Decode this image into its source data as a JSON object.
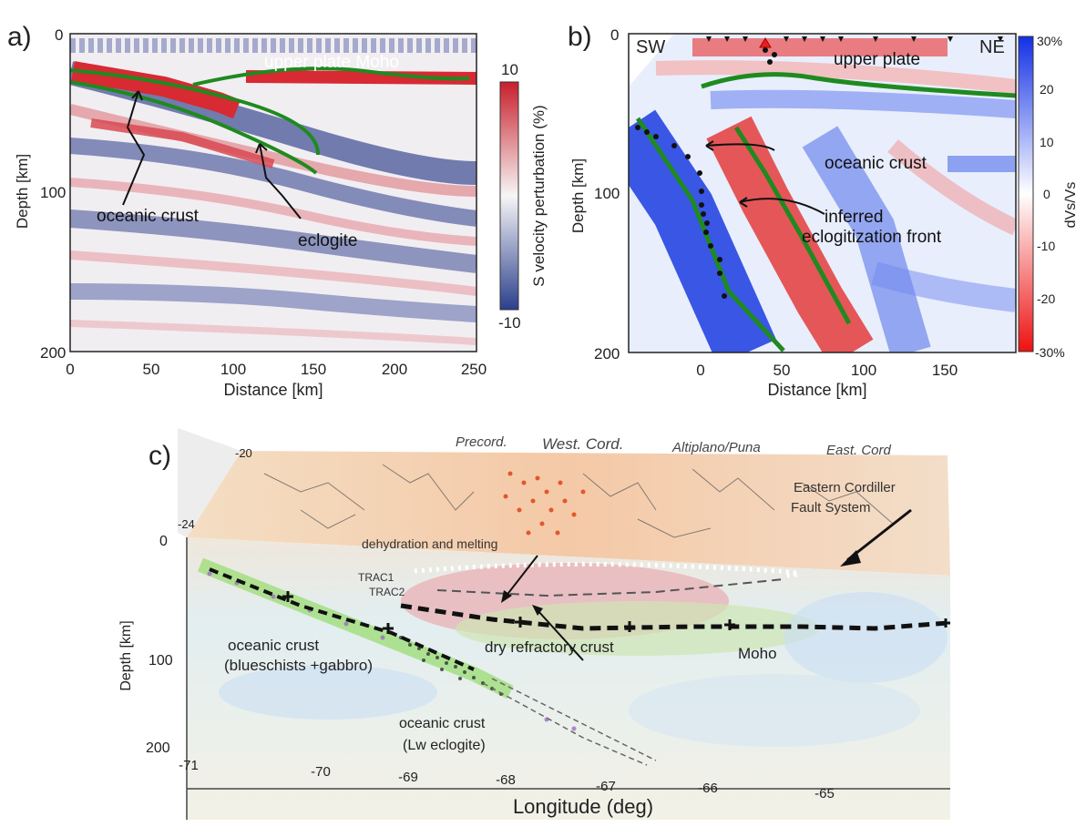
{
  "panel_a": {
    "panel_label": "a)",
    "ylabel": "Depth [km]",
    "xlabel": "Distance [km]",
    "xticks": [
      "0",
      "50",
      "100",
      "150",
      "200",
      "250"
    ],
    "yticks": [
      "0",
      "100",
      "200"
    ],
    "colorbar_label": "S velocity perturbation (%)",
    "colorbar_max": "10",
    "colorbar_min": "-10",
    "annotations": {
      "upper_plate_moho": "upper plate Moho",
      "oceanic_crust": "oceanic crust",
      "eclogite": "eclogite"
    },
    "colors": {
      "positive": "#d7262e",
      "negative": "#2b3f8c",
      "line": "#1f8a1f"
    }
  },
  "panel_b": {
    "panel_label": "b)",
    "ylabel": "Depth [km]",
    "xlabel": "Distance [km]",
    "xticks": [
      "0",
      "50",
      "100",
      "150"
    ],
    "yticks": [
      "0",
      "100",
      "200"
    ],
    "corner_left": "SW",
    "corner_right": "NE",
    "colorbar_label": "dVs/Vs",
    "colorbar_ticks": [
      "30%",
      "20",
      "10",
      "0",
      "-10",
      "-20",
      "-30%"
    ],
    "annotations": {
      "upper_plate": "upper plate",
      "oceanic_crust": "oceanic crust",
      "inferred": "inferred",
      "front": "eclogitization front"
    },
    "colors": {
      "positive": "#1a3be0",
      "negative": "#e81e1e",
      "line": "#1f8a1f"
    }
  },
  "panel_c": {
    "panel_label": "c)",
    "ylabel": "Depth [km]",
    "xlabel": "Longitude (deg)",
    "xticks": [
      "-71",
      "-70",
      "-69",
      "-68",
      "-67",
      "-66",
      "-65"
    ],
    "yticks": [
      "0",
      "100",
      "200"
    ],
    "lat_ticks": [
      "-20",
      "-24"
    ],
    "regions": [
      "Precord.",
      "West. Cord.",
      "Altiplano/Puna",
      "East. Cord"
    ],
    "fault_label_1": "Eastern Cordiller",
    "fault_label_2": "Fault System",
    "annotations": {
      "dehydration": "dehydration and melting",
      "trac1": "TRAC1",
      "trac2": "TRAC2",
      "dry_crust": "dry refractory crust",
      "moho": "Moho",
      "oc1_line1": "oceanic crust",
      "oc1_line2": "(blueschists +gabbro)",
      "oc2_line1": "oceanic crust",
      "oc2_line2": "(Lw eclogite)"
    }
  }
}
